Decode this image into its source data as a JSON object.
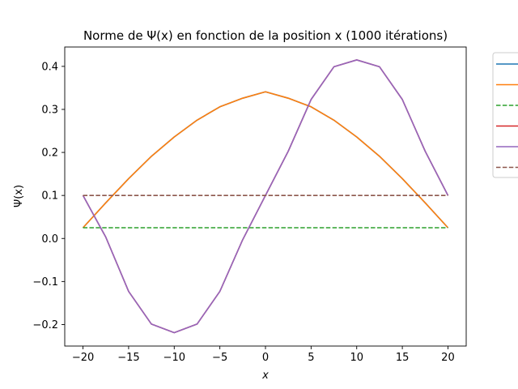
{
  "chart_data": {
    "type": "line",
    "title": "Norme de Ψ(x) en fonction de la position x (1000 itérations)",
    "xlabel": "x",
    "ylabel": "Ψ(x)",
    "xlim": [
      -22,
      22
    ],
    "ylim": [
      -0.25,
      0.445
    ],
    "xticks": [
      -20,
      -15,
      -10,
      -5,
      0,
      5,
      10,
      15,
      20
    ],
    "xtick_labels": [
      "−20",
      "−15",
      "−10",
      "−5",
      "0",
      "5",
      "10",
      "15",
      "20"
    ],
    "yticks": [
      -0.2,
      -0.1,
      0.0,
      0.1,
      0.2,
      0.3,
      0.4
    ],
    "ytick_labels": [
      "−0.2",
      "−0.1",
      "0.0",
      "0.1",
      "0.2",
      "0.3",
      "0.4"
    ],
    "grid": false,
    "legend_placement": "upper-right-outside",
    "series": [
      {
        "color": "#1f77b4",
        "style": "solid",
        "x": [
          -20,
          -17.5,
          -15,
          -12.5,
          -10,
          -7.5,
          -5,
          -2.5,
          0,
          2.5,
          5,
          7.5,
          10,
          12.5,
          15,
          17.5,
          20
        ],
        "y": [
          0.025,
          0.083,
          0.139,
          0.191,
          0.236,
          0.275,
          0.306,
          0.326,
          0.341,
          0.326,
          0.306,
          0.275,
          0.236,
          0.191,
          0.139,
          0.083,
          0.025
        ]
      },
      {
        "color": "#ff7f0e",
        "style": "solid",
        "x": [
          -20,
          -17.5,
          -15,
          -12.5,
          -10,
          -7.5,
          -5,
          -2.5,
          0,
          2.5,
          5,
          7.5,
          10,
          12.5,
          15,
          17.5,
          20
        ],
        "y": [
          0.025,
          0.083,
          0.139,
          0.191,
          0.236,
          0.275,
          0.306,
          0.326,
          0.341,
          0.326,
          0.306,
          0.275,
          0.236,
          0.191,
          0.139,
          0.083,
          0.025
        ]
      },
      {
        "color": "#2ca02c",
        "style": "dashed",
        "x": [
          -20,
          20
        ],
        "y": [
          0.025,
          0.025
        ]
      },
      {
        "color": "#d62728",
        "style": "solid",
        "x": [
          -20,
          -17.5,
          -15,
          -12.5,
          -10,
          -7.5,
          -5,
          -2.5,
          0,
          2.5,
          5,
          7.5,
          10,
          12.5,
          15,
          17.5,
          20
        ],
        "y": [
          0.1,
          0.003,
          -0.123,
          -0.199,
          -0.219,
          -0.199,
          -0.123,
          -0.003,
          0.1,
          0.203,
          0.323,
          0.399,
          0.415,
          0.399,
          0.323,
          0.203,
          0.1
        ]
      },
      {
        "color": "#9467bd",
        "style": "solid",
        "x": [
          -20,
          -17.5,
          -15,
          -12.5,
          -10,
          -7.5,
          -5,
          -2.5,
          0,
          2.5,
          5,
          7.5,
          10,
          12.5,
          15,
          17.5,
          20
        ],
        "y": [
          0.1,
          0.003,
          -0.123,
          -0.199,
          -0.219,
          -0.199,
          -0.123,
          -0.003,
          0.1,
          0.203,
          0.323,
          0.399,
          0.415,
          0.399,
          0.323,
          0.203,
          0.1
        ]
      },
      {
        "color": "#8c564b",
        "style": "dashed",
        "x": [
          -20,
          20
        ],
        "y": [
          0.1,
          0.1
        ]
      }
    ]
  }
}
